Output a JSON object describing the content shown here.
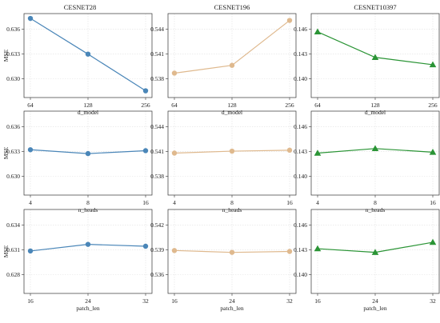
{
  "figure": {
    "columns": [
      "CESNET28",
      "CESNET196",
      "CESNET10397"
    ],
    "ylabel": "MSE"
  },
  "styles": {
    "CESNET28": {
      "color": "#4a86b8",
      "marker": "circle"
    },
    "CESNET196": {
      "color": "#dfb98e",
      "marker": "circle"
    },
    "CESNET10397": {
      "color": "#2a9435",
      "marker": "triangle"
    }
  },
  "chart_data": [
    {
      "type": "line",
      "title": "CESNET28",
      "xlabel": "d_model",
      "ylabel": "MSE",
      "categories": [
        "64",
        "128",
        "256"
      ],
      "values": [
        0.6367,
        0.633,
        0.6292
      ],
      "yticks": [
        "0.636",
        "0.633",
        "0.630"
      ],
      "ylim": [
        0.6285,
        0.6372
      ]
    },
    {
      "type": "line",
      "title": "CESNET196",
      "xlabel": "d_model",
      "ylabel": "",
      "categories": [
        "64",
        "128",
        "256"
      ],
      "values": [
        0.5391,
        0.5399,
        0.5445
      ],
      "yticks": [
        "0.544",
        "0.541",
        "0.538"
      ],
      "ylim": [
        0.5366,
        0.5452
      ]
    },
    {
      "type": "line",
      "title": "CESNET10397",
      "xlabel": "d_model",
      "ylabel": "",
      "categories": [
        "64",
        "128",
        "256"
      ],
      "values": [
        0.1456,
        0.1428,
        0.142
      ],
      "yticks": [
        "0.146",
        "0.143",
        "0.140"
      ],
      "ylim": [
        0.1384,
        0.1476
      ]
    },
    {
      "type": "line",
      "title": "",
      "xlabel": "n_heads",
      "ylabel": "MSE",
      "categories": [
        "4",
        "8",
        "16"
      ],
      "values": [
        0.6332,
        0.6328,
        0.6331
      ],
      "yticks": [
        "0.636",
        "0.633",
        "0.630"
      ],
      "ylim": [
        0.6285,
        0.6372
      ]
    },
    {
      "type": "line",
      "title": "",
      "xlabel": "n_heads",
      "ylabel": "",
      "categories": [
        "4",
        "8",
        "16"
      ],
      "values": [
        0.5409,
        0.5411,
        0.5412
      ],
      "yticks": [
        "0.544",
        "0.541",
        "0.538"
      ],
      "ylim": [
        0.5366,
        0.5452
      ]
    },
    {
      "type": "line",
      "title": "",
      "xlabel": "n_heads",
      "ylabel": "",
      "categories": [
        "4",
        "8",
        "16"
      ],
      "values": [
        0.143,
        0.1435,
        0.1431
      ],
      "yticks": [
        "0.146",
        "0.143",
        "0.140"
      ],
      "ylim": [
        0.1384,
        0.1476
      ]
    },
    {
      "type": "line",
      "title": "",
      "xlabel": "patch_len",
      "ylabel": "MSE",
      "categories": [
        "16",
        "24",
        "32"
      ],
      "values": [
        0.631,
        0.6317,
        0.6315
      ],
      "yticks": [
        "0.634",
        "0.631",
        "0.628"
      ],
      "ylim": [
        0.6265,
        0.6354
      ]
    },
    {
      "type": "line",
      "title": "",
      "xlabel": "patch_len",
      "ylabel": "",
      "categories": [
        "16",
        "24",
        "32"
      ],
      "values": [
        0.5389,
        0.5387,
        0.5388
      ],
      "yticks": [
        "0.542",
        "0.539",
        "0.536"
      ],
      "ylim": [
        0.5343,
        0.5433
      ]
    },
    {
      "type": "line",
      "title": "",
      "xlabel": "patch_len",
      "ylabel": "",
      "categories": [
        "16",
        "24",
        "32"
      ],
      "values": [
        0.1431,
        0.1427,
        0.1438
      ],
      "yticks": [
        "0.146",
        "0.143",
        "0.140"
      ],
      "ylim": [
        0.1382,
        0.1474
      ]
    }
  ]
}
